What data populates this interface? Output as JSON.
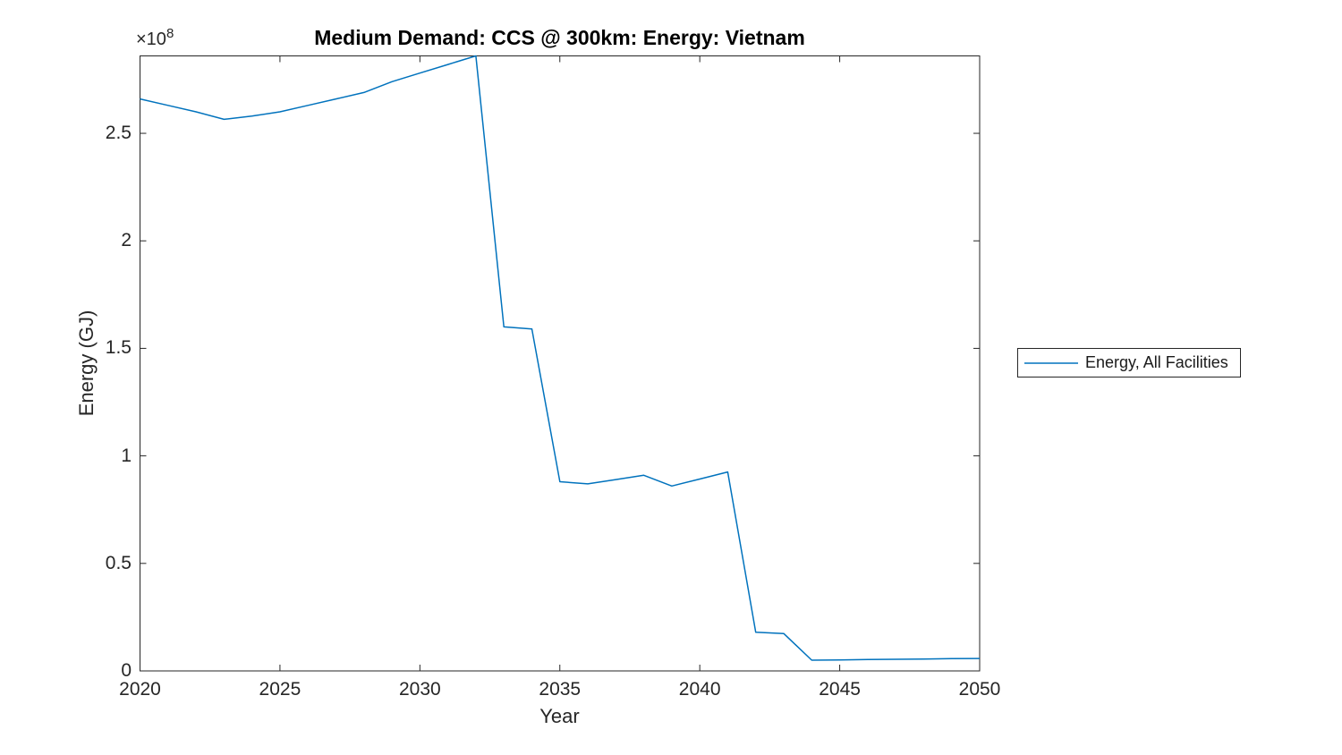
{
  "figure": {
    "background": "#ffffff",
    "axis_color": "#262626",
    "accent_line_color": "#0072BD"
  },
  "chart_data": {
    "type": "line",
    "title": "Medium Demand: CCS @ 300km: Energy: Vietnam",
    "xlabel": "Year",
    "ylabel": "Energy (GJ)",
    "y_axis_exponent": {
      "base": "×10",
      "exponent": "8"
    },
    "grid": false,
    "box": true,
    "tick_direction": "in",
    "xlim": [
      2020,
      2050
    ],
    "ylim": [
      0,
      286000000
    ],
    "x_ticks": [
      2020,
      2025,
      2030,
      2035,
      2040,
      2045,
      2050
    ],
    "y_ticks": [
      0,
      50000000,
      100000000,
      150000000,
      200000000,
      250000000
    ],
    "y_tick_labels": [
      "0",
      "0.5",
      "1",
      "1.5",
      "2",
      "2.5"
    ],
    "legend": {
      "position": "right-outside",
      "entries": [
        {
          "label": "Energy, All Facilities",
          "color": "#0072BD"
        }
      ]
    },
    "series": [
      {
        "name": "Energy, All Facilities",
        "color": "#0072BD",
        "x": [
          2020,
          2021,
          2022,
          2023,
          2024,
          2025,
          2026,
          2027,
          2028,
          2029,
          2030,
          2031,
          2032,
          2033,
          2034,
          2035,
          2036,
          2037,
          2038,
          2039,
          2040,
          2041,
          2042,
          2043,
          2044,
          2045,
          2046,
          2047,
          2048,
          2049,
          2050
        ],
        "y": [
          266000000,
          263000000,
          260000000,
          256500000,
          258000000,
          260000000,
          263000000,
          266000000,
          269000000,
          274000000,
          278000000,
          282000000,
          286000000,
          160000000,
          159000000,
          88000000,
          87000000,
          89000000,
          91000000,
          86000000,
          89250000,
          92500000,
          18000000,
          17400000,
          5000000,
          5100000,
          5300000,
          5400000,
          5500000,
          5700000,
          5800000
        ]
      }
    ]
  }
}
